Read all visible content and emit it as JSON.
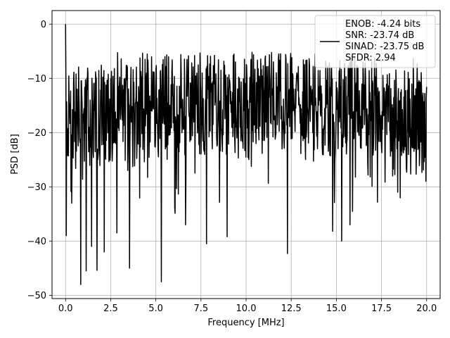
{
  "chart_data": {
    "type": "line",
    "title": "",
    "xlabel": "Frequency [MHz]",
    "ylabel": "PSD [dB]",
    "xlim": [
      -0.75,
      20.75
    ],
    "ylim": [
      -50.6,
      2.5
    ],
    "xticks": [
      0.0,
      2.5,
      5.0,
      7.5,
      10.0,
      12.5,
      15.0,
      17.5,
      20.0
    ],
    "xtick_labels": [
      "0.0",
      "2.5",
      "5.0",
      "7.5",
      "10.0",
      "12.5",
      "15.0",
      "17.5",
      "20.0"
    ],
    "yticks": [
      0,
      -10,
      -20,
      -30,
      -40,
      -50
    ],
    "ytick_labels": [
      "0",
      "−10",
      "−20",
      "−30",
      "−40",
      "−50"
    ],
    "grid": true,
    "legend_position": "top-right",
    "series": [
      {
        "color": "#000000",
        "x_range": [
          0.0,
          20.0
        ],
        "points": 1000,
        "description_values": {
          "peak_at": [
            0.0,
            0.0
          ],
          "baseline_band": [
            -25,
            -8
          ],
          "deep_nulls": [
            [
              0.05,
              -39
            ],
            [
              0.35,
              -33
            ],
            [
              0.85,
              -48
            ],
            [
              1.15,
              -45.5
            ],
            [
              1.45,
              -41
            ],
            [
              1.75,
              -45.4
            ],
            [
              2.15,
              -42
            ],
            [
              2.85,
              -38.5
            ],
            [
              3.55,
              -45
            ],
            [
              5.3,
              -47.5
            ],
            [
              6.65,
              -37
            ],
            [
              7.8,
              -40.5
            ],
            [
              8.95,
              -39.2
            ],
            [
              12.3,
              -42.3
            ],
            [
              14.8,
              -38.2
            ],
            [
              15.3,
              -40
            ],
            [
              15.75,
              -37
            ]
          ]
        },
        "legend_lines": [
          "ENOB: -4.24 bits",
          "SNR: -23.74 dB",
          "SINAD: -23.75 dB",
          "SFDR: 2.94"
        ]
      }
    ]
  }
}
